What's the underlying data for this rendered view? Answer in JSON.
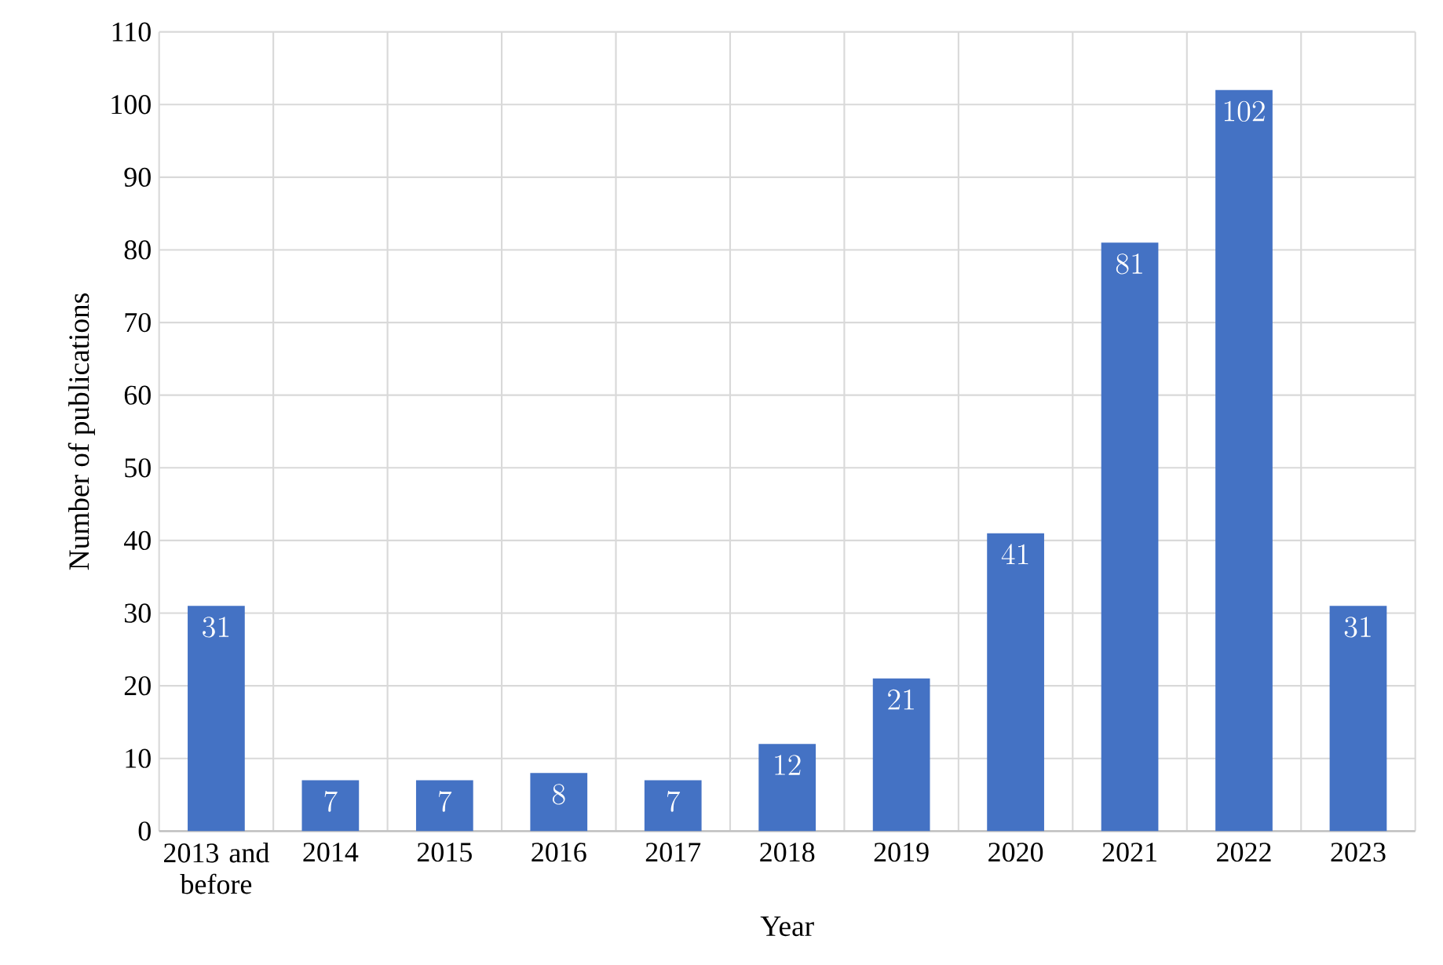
{
  "chart_data": {
    "type": "bar",
    "xlabel": "Year",
    "ylabel": "Number of publications",
    "categories": [
      "2013 and before",
      "2014",
      "2015",
      "2016",
      "2017",
      "2018",
      "2019",
      "2020",
      "2021",
      "2022",
      "2023"
    ],
    "values": [
      31,
      7,
      7,
      8,
      7,
      12,
      21,
      41,
      81,
      102,
      31
    ],
    "color": "#4472c4",
    "ylim": [
      0,
      110
    ],
    "yticks": [
      0,
      10,
      20,
      30,
      40,
      50,
      60,
      70,
      80,
      90,
      100,
      110
    ],
    "grid": true,
    "data_labels": true
  }
}
